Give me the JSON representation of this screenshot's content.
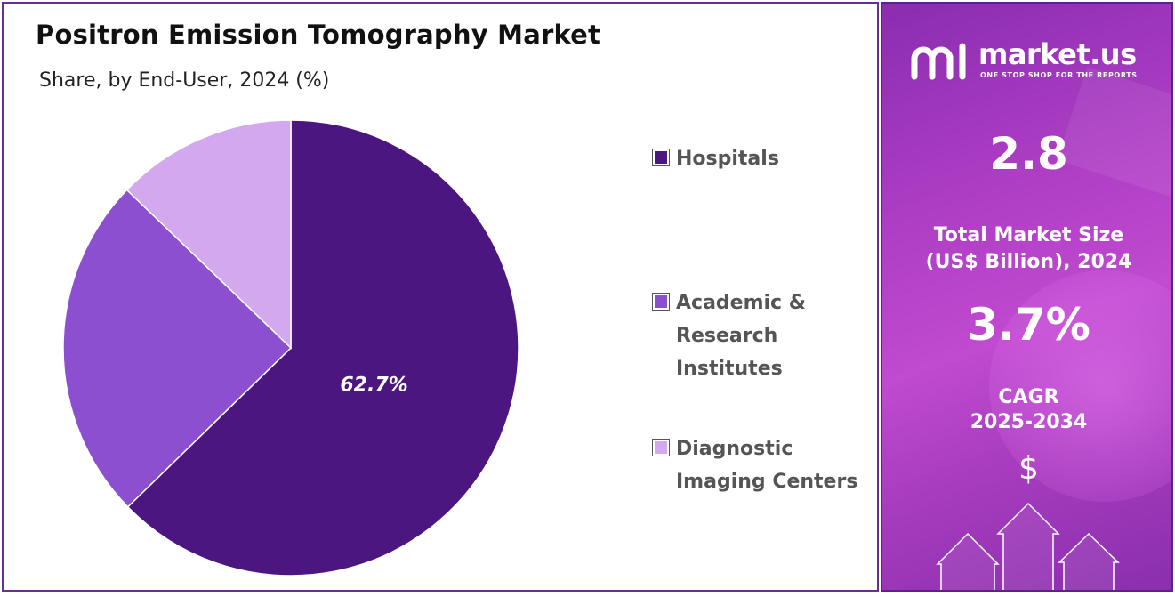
{
  "chart_data": {
    "type": "pie",
    "title": "Positron Emission Tomography Market",
    "subtitle": "Share, by End-User, 2024 (%)",
    "slices": [
      {
        "label": "Hospitals",
        "value": 62.7,
        "color": "#4b1680",
        "data_label": "62.7%"
      },
      {
        "label": "Academic & Research Institutes",
        "value": 24.5,
        "color": "#8b4fd0",
        "data_label": ""
      },
      {
        "label": "Diagnostic Imaging Centers",
        "value": 12.8,
        "color": "#d3a8ee",
        "data_label": ""
      }
    ],
    "legend": {
      "placement": "right",
      "entries": [
        {
          "lines": [
            "Hospitals"
          ]
        },
        {
          "lines": [
            "Academic &",
            "Research",
            "Institutes"
          ]
        },
        {
          "lines": [
            "Diagnostic",
            "Imaging Centers"
          ]
        }
      ]
    }
  },
  "side_panel": {
    "brand": "market.us",
    "tagline": "ONE STOP SHOP FOR THE REPORTS",
    "market_size_value": "2.8",
    "market_size_label_1": "Total Market Size",
    "market_size_label_2": "(US$ Billion), 2024",
    "cagr_value": "3.7%",
    "cagr_label_1": "CAGR",
    "cagr_label_2": "2025-2034",
    "currency_symbol": "$",
    "icons": [
      "market-us-logo-icon",
      "up-arrow-icon"
    ]
  }
}
